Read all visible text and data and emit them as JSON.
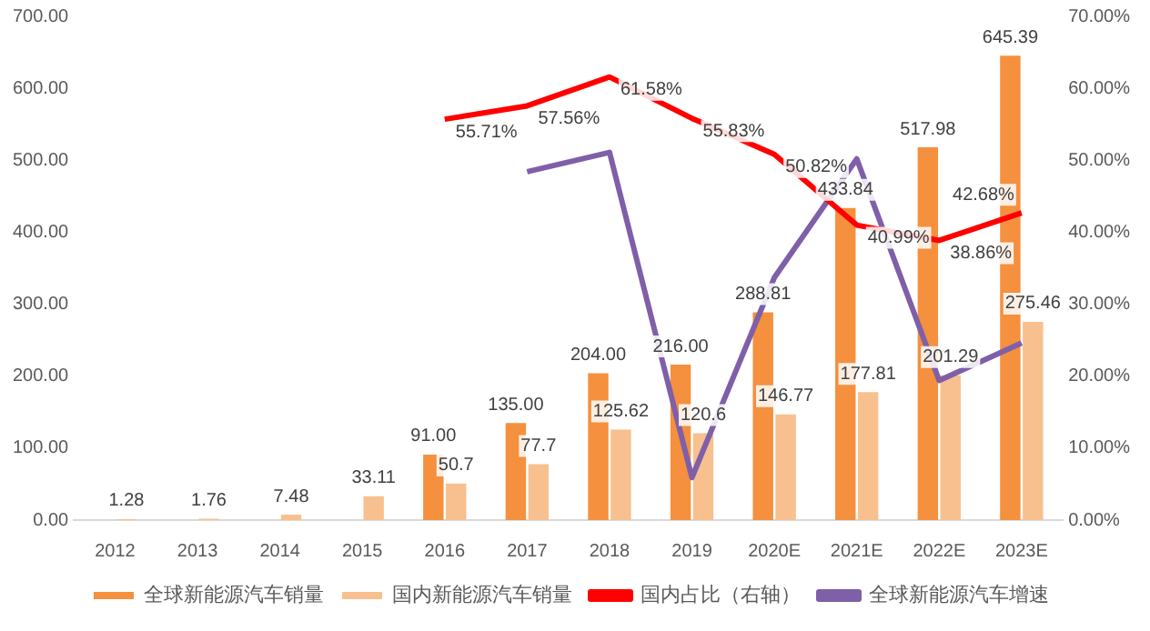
{
  "chart_data": {
    "type": "bar",
    "categories": [
      "2012",
      "2013",
      "2014",
      "2015",
      "2016",
      "2017",
      "2018",
      "2019",
      "2020E",
      "2021E",
      "2022E",
      "2023E"
    ],
    "series": [
      {
        "name": "全球新能源汽车销量",
        "color": "#f4903e",
        "values": [
          null,
          null,
          null,
          null,
          91.0,
          135.0,
          204.0,
          216.0,
          288.81,
          433.84,
          517.98,
          645.39
        ],
        "value_labels": [
          null,
          null,
          null,
          null,
          "91.00",
          "135.00",
          "204.00",
          "216.00",
          "288.81",
          "433.84",
          "517.98",
          "645.39"
        ]
      },
      {
        "name": "国内新能源汽车销量",
        "color": "#f8c08e",
        "values": [
          1.28,
          1.76,
          7.48,
          33.11,
          50.7,
          77.7,
          125.62,
          120.6,
          146.77,
          177.81,
          201.29,
          275.46
        ],
        "value_labels": [
          "1.28",
          "1.76",
          "7.48",
          "33.11",
          "50.7",
          "77.7",
          "125.62",
          "120.6",
          "146.77",
          "177.81",
          "201.29",
          "275.46"
        ]
      },
      {
        "name": "国内占比（右轴）",
        "type": "line",
        "axis": "y2",
        "color": "#ff0000",
        "values": [
          null,
          null,
          null,
          null,
          55.71,
          57.56,
          61.58,
          55.83,
          50.82,
          40.99,
          38.86,
          42.68
        ],
        "value_labels": [
          null,
          null,
          null,
          null,
          "55.71%",
          "57.56%",
          "61.58%",
          "55.83%",
          "50.82%",
          "40.99%",
          "38.86%",
          "42.68%"
        ]
      },
      {
        "name": "全球新能源汽车增速",
        "type": "line",
        "axis": "y2",
        "color": "#7f5fa8",
        "values": [
          null,
          null,
          null,
          null,
          null,
          48.4,
          51.1,
          5.9,
          33.7,
          50.2,
          19.4,
          24.6
        ]
      }
    ],
    "ylim": [
      0,
      700
    ],
    "yticks": [
      {
        "value": 0,
        "label": "0.00"
      },
      {
        "value": 100,
        "label": "100.00"
      },
      {
        "value": 200,
        "label": "200.00"
      },
      {
        "value": 300,
        "label": "300.00"
      },
      {
        "value": 400,
        "label": "400.00"
      },
      {
        "value": 500,
        "label": "500.00"
      },
      {
        "value": 600,
        "label": "600.00"
      },
      {
        "value": 700,
        "label": "700.00"
      }
    ],
    "y2lim": [
      0,
      70
    ],
    "y2ticks": [
      {
        "value": 0,
        "label": "0.00%"
      },
      {
        "value": 10,
        "label": "10.00%"
      },
      {
        "value": 20,
        "label": "20.00%"
      },
      {
        "value": 30,
        "label": "30.00%"
      },
      {
        "value": 40,
        "label": "40.00%"
      },
      {
        "value": 50,
        "label": "50.00%"
      },
      {
        "value": 60,
        "label": "60.00%"
      },
      {
        "value": 70,
        "label": "70.00%"
      }
    ],
    "grid": false,
    "legend": "bottom",
    "marker": "none",
    "line_style": "solid"
  }
}
